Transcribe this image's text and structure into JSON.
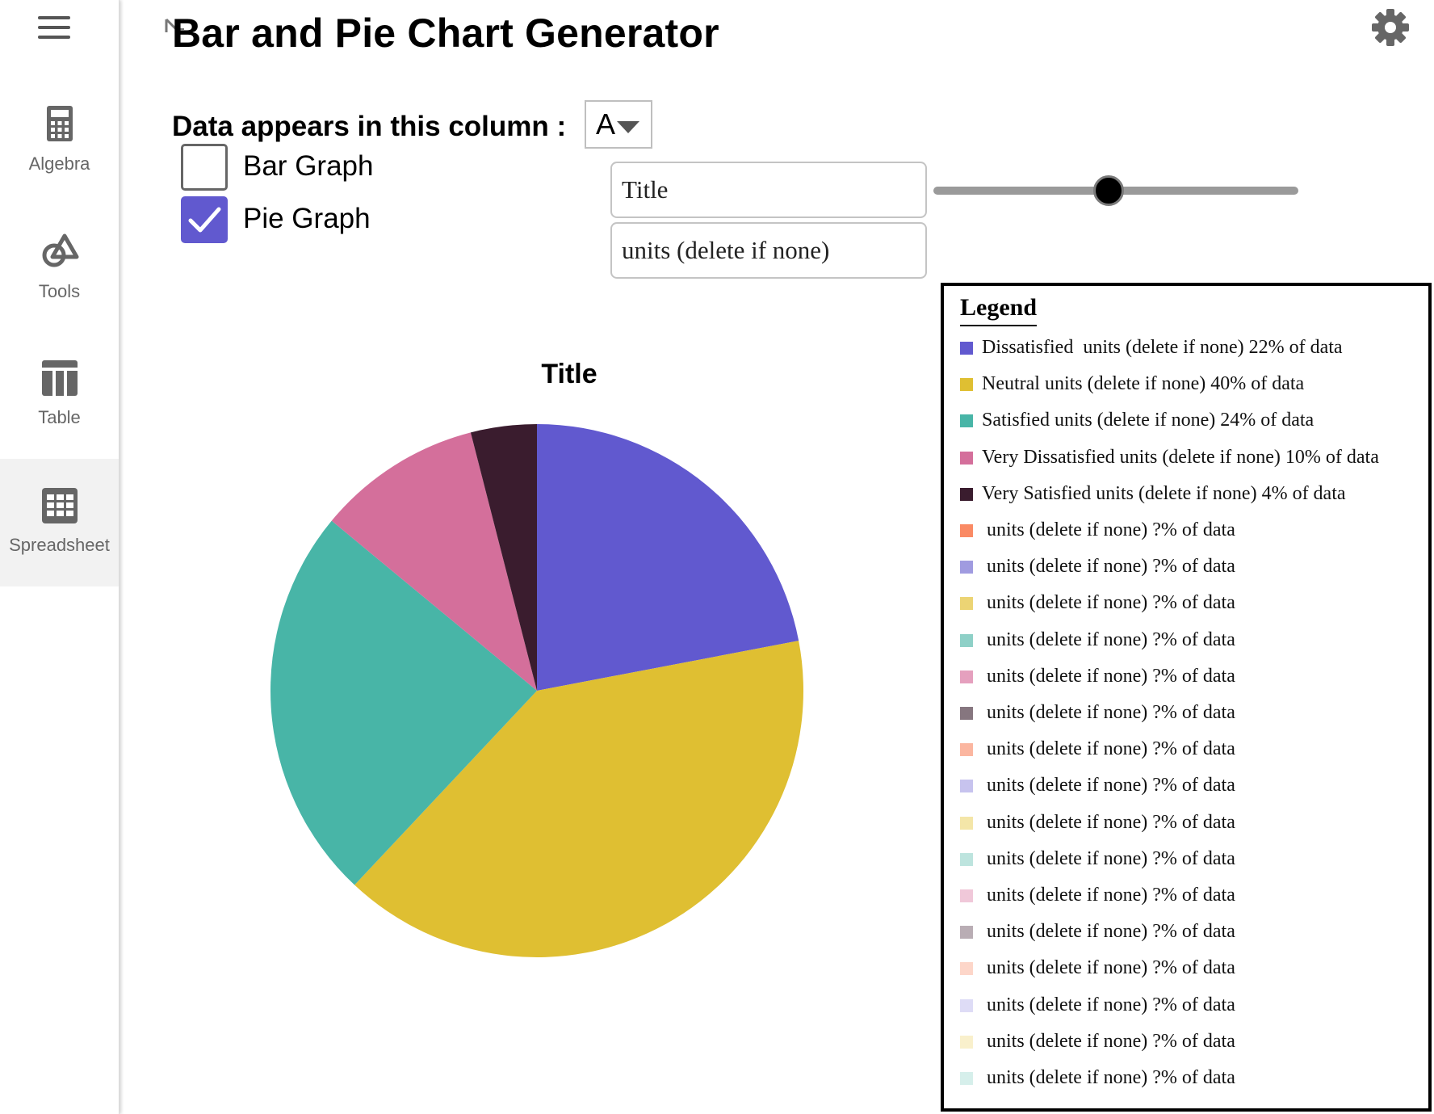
{
  "app_title": "Bar and Pie Chart Generator",
  "sidebar": {
    "items": [
      {
        "label": "Algebra",
        "icon": "calculator-icon",
        "active": false
      },
      {
        "label": "Tools",
        "icon": "shapes-icon",
        "active": false
      },
      {
        "label": "Table",
        "icon": "table-icon",
        "active": false
      },
      {
        "label": "Spreadsheet",
        "icon": "spreadsheet-icon",
        "active": true
      }
    ]
  },
  "controls": {
    "column_label": "Data appears in this column :",
    "column_value": "A",
    "bar_graph": {
      "label": "Bar Graph",
      "checked": false
    },
    "pie_graph": {
      "label": "Pie Graph",
      "checked": true
    },
    "title_input": {
      "value": "Title"
    },
    "units_input": {
      "value": "units (delete if none)"
    },
    "slider_value": 0.48
  },
  "chart_data": {
    "type": "pie",
    "title": "Title",
    "categories": [
      "Dissatisfied",
      "Neutral",
      "Satisfied",
      "Very Dissatisfied",
      "Very Satisfied"
    ],
    "values": [
      22,
      40,
      24,
      10,
      4
    ],
    "colors": [
      "#6159cf",
      "#dfbf32",
      "#48b5a7",
      "#d46f9b",
      "#3a1c2e"
    ]
  },
  "legend": {
    "title": "Legend",
    "items": [
      {
        "text": "Dissatisfied  units (delete if none) 22% of data",
        "color": "#6159cf"
      },
      {
        "text": "Neutral units (delete if none) 40% of data",
        "color": "#dfbf32"
      },
      {
        "text": "Satisfied units (delete if none) 24% of data",
        "color": "#48b5a7"
      },
      {
        "text": "Very Dissatisfied units (delete if none) 10% of data",
        "color": "#d46f9b"
      },
      {
        "text": "Very Satisfied units (delete if none) 4% of data",
        "color": "#3a1c2e"
      },
      {
        "text": " units (delete if none) ?% of data",
        "color": "#fa8a64"
      },
      {
        "text": " units (delete if none) ?% of data",
        "color": "#a09be0"
      },
      {
        "text": " units (delete if none) ?% of data",
        "color": "#ecd474"
      },
      {
        "text": " units (delete if none) ?% of data",
        "color": "#8ed0c7"
      },
      {
        "text": " units (delete if none) ?% of data",
        "color": "#e5a0be"
      },
      {
        "text": " units (delete if none) ?% of data",
        "color": "#86767f"
      },
      {
        "text": " units (delete if none) ?% of data",
        "color": "#fbb6a0"
      },
      {
        "text": " units (delete if none) ?% of data",
        "color": "#c7c3ee"
      },
      {
        "text": " units (delete if none) ?% of data",
        "color": "#f4e6a8"
      },
      {
        "text": " units (delete if none) ?% of data",
        "color": "#bde4de"
      },
      {
        "text": " units (delete if none) ?% of data",
        "color": "#f0c8d9"
      },
      {
        "text": " units (delete if none) ?% of data",
        "color": "#b9adb4"
      },
      {
        "text": " units (delete if none) ?% of data",
        "color": "#fdd6c9"
      },
      {
        "text": " units (delete if none) ?% of data",
        "color": "#dedcf6"
      },
      {
        "text": " units (delete if none) ?% of data",
        "color": "#f9f0cc"
      },
      {
        "text": " units (delete if none) ?% of data",
        "color": "#d6efeb"
      }
    ]
  }
}
